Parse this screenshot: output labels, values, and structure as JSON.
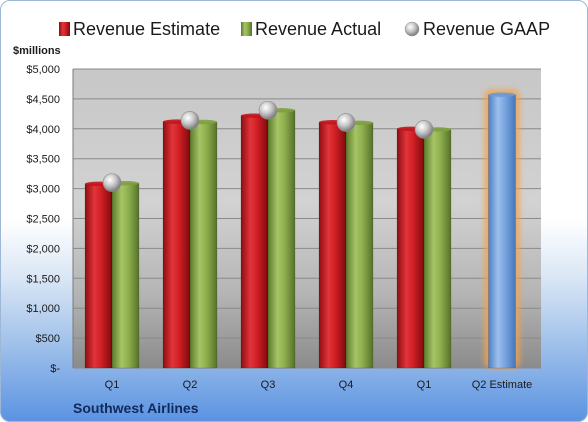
{
  "chart_data": {
    "type": "bar",
    "ylabel": "$millions",
    "footer": "Southwest Airlines",
    "categories": [
      "Q1",
      "Q2",
      "Q3",
      "Q4",
      "Q1",
      "Q2 Estimate"
    ],
    "ylim": [
      0,
      5000
    ],
    "yticks": [
      0,
      500,
      1000,
      1500,
      2000,
      2500,
      3000,
      3500,
      4000,
      4500,
      5000
    ],
    "ytick_labels": [
      "$-",
      "$500",
      "$1,000",
      "$1,500",
      "$2,000",
      "$2,500",
      "$3,000",
      "$3,500",
      "$4,000",
      "$4,500",
      "$5,000"
    ],
    "legend_position": "top",
    "grid": true,
    "series": [
      {
        "name": "Revenue Estimate",
        "type": "bar",
        "color": "#c0141c",
        "values": [
          3080,
          4120,
          4220,
          4110,
          4000,
          null
        ]
      },
      {
        "name": "Revenue Actual",
        "type": "bar",
        "color": "#7fa040",
        "values": [
          3090,
          4115,
          4310,
          4100,
          3990,
          null
        ]
      },
      {
        "name": "Revenue GAAP",
        "type": "marker",
        "color": "#a8a8a8",
        "values": [
          3100,
          4140,
          4310,
          4105,
          3990,
          null
        ]
      },
      {
        "name": "Q2 Estimate",
        "type": "bar",
        "color": "#6a9ad8",
        "highlight": "#f5a34a",
        "values": [
          null,
          null,
          null,
          null,
          null,
          4570
        ]
      }
    ]
  }
}
